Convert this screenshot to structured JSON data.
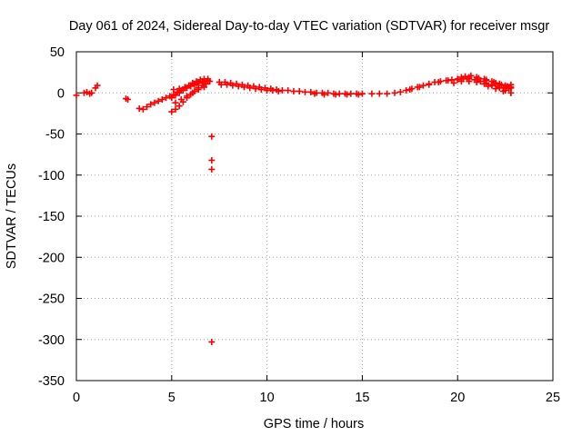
{
  "chart_data": {
    "type": "scatter",
    "title": "Day 061 of 2024, Sidereal Day-to-day VTEC variation (SDTVAR) for receiver msgr",
    "xlabel": "GPS time / hours",
    "ylabel": "SDTVAR / TECUs",
    "xlim": [
      0,
      25
    ],
    "ylim": [
      -350,
      50
    ],
    "xticks": [
      0,
      5,
      10,
      15,
      20,
      25
    ],
    "yticks": [
      50,
      0,
      -50,
      -100,
      -150,
      -200,
      -250,
      -300,
      -350
    ],
    "grid": true,
    "marker": "+",
    "colors": {
      "series": "#ff0000",
      "grid": "#a0a0a0",
      "axes": "#000000"
    },
    "series": [
      {
        "name": "SDTVAR",
        "points": [
          [
            0.0,
            -3
          ],
          [
            0.4,
            0
          ],
          [
            0.55,
            1
          ],
          [
            0.7,
            -1
          ],
          [
            0.8,
            0
          ],
          [
            1.0,
            6
          ],
          [
            1.1,
            9
          ],
          [
            2.6,
            -7
          ],
          [
            2.7,
            -8
          ],
          [
            3.3,
            -19
          ],
          [
            3.5,
            -20
          ],
          [
            3.7,
            -17
          ],
          [
            3.9,
            -14
          ],
          [
            4.1,
            -12
          ],
          [
            4.3,
            -10
          ],
          [
            4.5,
            -8
          ],
          [
            4.7,
            -6
          ],
          [
            4.9,
            -4
          ],
          [
            5.1,
            -2
          ],
          [
            5.3,
            1
          ],
          [
            5.5,
            3
          ],
          [
            5.7,
            6
          ],
          [
            5.9,
            9
          ],
          [
            6.1,
            12
          ],
          [
            6.3,
            14
          ],
          [
            6.5,
            16
          ],
          [
            6.7,
            17
          ],
          [
            6.9,
            17
          ],
          [
            5.0,
            -23
          ],
          [
            5.2,
            -20
          ],
          [
            5.4,
            -16
          ],
          [
            5.6,
            -11
          ],
          [
            5.8,
            -6
          ],
          [
            6.0,
            -2
          ],
          [
            6.2,
            2
          ],
          [
            6.4,
            6
          ],
          [
            6.6,
            9
          ],
          [
            6.8,
            11
          ],
          [
            5.0,
            -6
          ],
          [
            5.2,
            -3
          ],
          [
            5.4,
            0
          ],
          [
            5.6,
            3
          ],
          [
            5.8,
            6
          ],
          [
            6.0,
            8
          ],
          [
            6.2,
            10
          ],
          [
            6.4,
            12
          ],
          [
            6.6,
            13
          ],
          [
            6.8,
            14
          ],
          [
            7.0,
            14
          ],
          [
            5.1,
            4
          ],
          [
            5.4,
            5
          ],
          [
            5.7,
            7
          ],
          [
            6.0,
            9
          ],
          [
            6.3,
            11
          ],
          [
            6.6,
            13
          ],
          [
            6.9,
            15
          ],
          [
            5.2,
            -12
          ],
          [
            5.5,
            -8
          ],
          [
            5.8,
            -4
          ],
          [
            6.1,
            0
          ],
          [
            6.4,
            4
          ],
          [
            6.7,
            7
          ],
          [
            7.1,
            -53
          ],
          [
            7.1,
            -82
          ],
          [
            7.1,
            -93
          ],
          [
            7.1,
            -303
          ],
          [
            7.5,
            13
          ],
          [
            7.8,
            13
          ],
          [
            8.1,
            12
          ],
          [
            8.4,
            11
          ],
          [
            8.7,
            10
          ],
          [
            9.0,
            9
          ],
          [
            9.3,
            8
          ],
          [
            9.6,
            7
          ],
          [
            9.9,
            6
          ],
          [
            10.2,
            5
          ],
          [
            10.5,
            4
          ],
          [
            10.8,
            3
          ],
          [
            11.1,
            3
          ],
          [
            11.4,
            2
          ],
          [
            11.7,
            2
          ],
          [
            7.6,
            10
          ],
          [
            7.9,
            10
          ],
          [
            8.2,
            9
          ],
          [
            8.5,
            8
          ],
          [
            8.8,
            7
          ],
          [
            9.1,
            6
          ],
          [
            9.4,
            5
          ],
          [
            9.7,
            4
          ],
          [
            10.0,
            3
          ],
          [
            10.3,
            3
          ],
          [
            10.6,
            2
          ],
          [
            12.0,
            1
          ],
          [
            12.3,
            1
          ],
          [
            12.6,
            0
          ],
          [
            12.9,
            0
          ],
          [
            13.2,
            0
          ],
          [
            13.5,
            -1
          ],
          [
            13.8,
            -1
          ],
          [
            14.1,
            -1
          ],
          [
            14.4,
            -1
          ],
          [
            14.7,
            -1
          ],
          [
            15.0,
            -1
          ],
          [
            12.5,
            -1
          ],
          [
            13.0,
            -2
          ],
          [
            13.6,
            -2
          ],
          [
            14.2,
            -2
          ],
          [
            14.8,
            -2
          ],
          [
            15.5,
            -1
          ],
          [
            15.9,
            -1
          ],
          [
            16.3,
            -1
          ],
          [
            16.7,
            0
          ],
          [
            17.0,
            1
          ],
          [
            17.3,
            3
          ],
          [
            17.6,
            5
          ],
          [
            17.9,
            7
          ],
          [
            18.2,
            9
          ],
          [
            18.5,
            11
          ],
          [
            18.8,
            13
          ],
          [
            19.1,
            14
          ],
          [
            19.4,
            15
          ],
          [
            19.7,
            16
          ],
          [
            20.0,
            17
          ],
          [
            20.3,
            17
          ],
          [
            20.6,
            17
          ],
          [
            20.9,
            16
          ],
          [
            21.2,
            14
          ],
          [
            21.5,
            12
          ],
          [
            21.8,
            10
          ],
          [
            22.1,
            8
          ],
          [
            22.4,
            6
          ],
          [
            22.7,
            5
          ],
          [
            17.5,
            4
          ],
          [
            18.0,
            7
          ],
          [
            18.5,
            10
          ],
          [
            19.0,
            13
          ],
          [
            19.5,
            15
          ],
          [
            20.0,
            16
          ],
          [
            20.5,
            17
          ],
          [
            21.0,
            16
          ],
          [
            21.5,
            15
          ],
          [
            22.0,
            12
          ],
          [
            22.5,
            9
          ],
          [
            22.8,
            7
          ],
          [
            20.4,
            20
          ],
          [
            20.7,
            21
          ],
          [
            21.0,
            19
          ],
          [
            21.4,
            17
          ],
          [
            21.8,
            14
          ],
          [
            22.2,
            11
          ],
          [
            22.6,
            8
          ],
          [
            22.8,
            6
          ],
          [
            19.8,
            12
          ],
          [
            20.2,
            14
          ],
          [
            20.6,
            14
          ],
          [
            21.0,
            13
          ],
          [
            21.4,
            11
          ],
          [
            21.8,
            9
          ],
          [
            22.2,
            6
          ],
          [
            22.5,
            3
          ],
          [
            22.8,
            0
          ],
          [
            20.2,
            19
          ],
          [
            20.6,
            19
          ],
          [
            21.1,
            18
          ],
          [
            21.5,
            16
          ],
          [
            21.9,
            13
          ],
          [
            22.3,
            10
          ],
          [
            22.7,
            7
          ],
          [
            21.6,
            8
          ],
          [
            22.0,
            5
          ],
          [
            22.4,
            2
          ],
          [
            22.8,
            0
          ],
          [
            22.8,
            10
          ]
        ]
      }
    ]
  }
}
